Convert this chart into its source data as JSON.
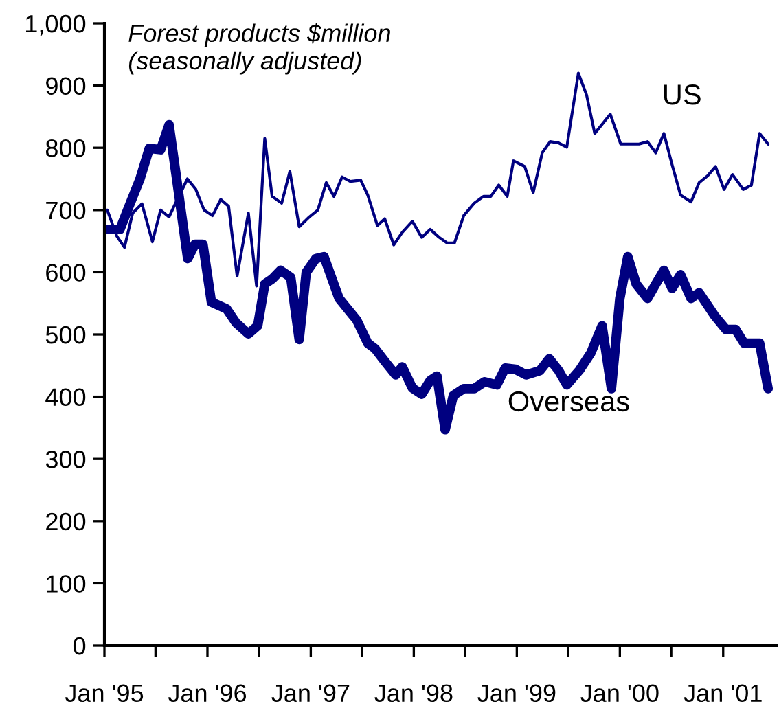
{
  "chart_data": {
    "type": "line",
    "title": "Forest products $million",
    "subtitle": "(seasonally adjusted)",
    "xlim": [
      "1995-01-01",
      "2001-07-08"
    ],
    "xticks": [
      {
        "value": "1995-01",
        "label": "Jan '95"
      },
      {
        "value": "1995-07",
        "label": null
      },
      {
        "value": "1996-01",
        "label": "Jan '96"
      },
      {
        "value": "1996-07",
        "label": null
      },
      {
        "value": "1997-01",
        "label": "Jan '97"
      },
      {
        "value": "1997-07",
        "label": null
      },
      {
        "value": "1998-01",
        "label": "Jan '98"
      },
      {
        "value": "1998-07",
        "label": null
      },
      {
        "value": "1999-01",
        "label": "Jan '99"
      },
      {
        "value": "1999-07",
        "label": null
      },
      {
        "value": "2000-01",
        "label": "Jan '00"
      },
      {
        "value": "2000-07",
        "label": null
      },
      {
        "value": "2001-01",
        "label": "Jan '01"
      }
    ],
    "ylim": [
      0,
      1000
    ],
    "yticks": [
      0,
      100,
      200,
      300,
      400,
      500,
      600,
      700,
      800,
      900,
      {
        "value": 1000,
        "label": "1,000"
      }
    ],
    "grid": false,
    "legend": false,
    "marker": "none",
    "line_style": "solid",
    "series": [
      {
        "name": "US",
        "color": "#000080",
        "x": [
          "1995-01-11",
          "1995-02-14",
          "1995-03-13",
          "1995-04-11",
          "1995-05-14",
          "1995-06-20",
          "1995-07-19",
          "1995-08-18",
          "1995-09-09",
          "1995-10-22",
          "1995-11-21",
          "1995-12-20",
          "1996-01-19",
          "1996-02-17",
          "1996-03-16",
          "1996-04-15",
          "1996-05-25",
          "1996-06-23",
          "1996-07-22",
          "1996-08-17",
          "1996-09-20",
          "1996-10-19",
          "1996-11-21",
          "1996-12-27",
          "1997-01-26",
          "1997-02-25",
          "1997-03-24",
          "1997-04-22",
          "1997-05-21",
          "1997-06-27",
          "1997-07-22",
          "1997-08-25",
          "1997-09-20",
          "1997-10-22",
          "1997-11-21",
          "1997-12-27",
          "1998-01-29",
          "1998-02-28",
          "1998-04-01",
          "1998-04-29",
          "1998-05-25",
          "1998-06-27",
          "1998-08-03",
          "1998-09-05",
          "1998-10-01",
          "1998-10-29",
          "1998-11-28",
          "1998-12-20",
          "1999-01-29",
          "1999-02-28",
          "1999-04-01",
          "1999-04-29",
          "1999-05-28",
          "1999-06-27",
          "1999-08-07",
          "1999-09-05",
          "1999-10-04",
          "1999-11-28",
          "2000-01-04",
          "2000-02-03",
          "2000-03-09",
          "2000-04-08",
          "2000-05-07",
          "2000-06-05",
          "2000-07-04",
          "2000-08-03",
          "2000-09-09",
          "2000-10-08",
          "2000-11-07",
          "2000-12-05",
          "2001-01-04",
          "2001-02-03",
          "2001-03-13",
          "2001-04-11",
          "2001-05-10",
          "2001-06-09"
        ],
        "values": [
          700,
          658,
          640,
          695,
          710,
          649,
          700,
          689,
          710,
          750,
          733,
          700,
          691,
          717,
          706,
          594,
          695,
          578,
          815,
          722,
          711,
          762,
          673,
          689,
          700,
          744,
          722,
          753,
          746,
          748,
          724,
          675,
          686,
          644,
          664,
          682,
          656,
          669,
          656,
          647,
          647,
          691,
          711,
          722,
          722,
          740,
          722,
          779,
          770,
          728,
          792,
          810,
          808,
          801,
          920,
          885,
          823,
          854,
          806,
          806,
          806,
          810,
          792,
          823,
          773,
          724,
          713,
          744,
          755,
          770,
          733,
          757,
          733,
          740,
          823,
          806
        ]
      },
      {
        "name": "Overseas",
        "color": "#000080",
        "x": [
          "1995-01-11",
          "1995-02-25",
          "1995-03-24",
          "1995-05-07",
          "1995-06-09",
          "1995-07-19",
          "1995-08-18",
          "1995-09-09",
          "1995-10-23",
          "1995-11-18",
          "1995-12-16",
          "1996-01-15",
          "1996-03-09",
          "1996-04-11",
          "1996-05-25",
          "1996-06-27",
          "1996-07-22",
          "1996-08-17",
          "1996-09-16",
          "1996-10-22",
          "1996-11-21",
          "1996-12-16",
          "1997-01-19",
          "1997-02-17",
          "1997-04-11",
          "1997-06-13",
          "1997-07-22",
          "1997-08-17",
          "1997-09-20",
          "1997-10-29",
          "1997-11-21",
          "1997-12-27",
          "1998-01-29",
          "1998-02-28",
          "1998-03-24",
          "1998-04-22",
          "1998-05-21",
          "1998-06-27",
          "1998-08-03",
          "1998-09-09",
          "1998-10-22",
          "1998-11-21",
          "1998-12-27",
          "1999-02-03",
          "1999-03-24",
          "1999-04-26",
          "1999-05-29",
          "1999-06-27",
          "1999-08-10",
          "1999-09-20",
          "1999-10-30",
          "1999-12-02",
          "2000-01-01",
          "2000-01-29",
          "2000-02-28",
          "2000-04-08",
          "2000-05-07",
          "2000-06-05",
          "2000-07-04",
          "2000-08-03",
          "2000-09-09",
          "2000-10-08",
          "2000-12-02",
          "2001-01-11",
          "2001-02-14",
          "2001-03-16",
          "2001-04-11",
          "2001-05-10",
          "2001-06-09"
        ],
        "values": [
          669,
          669,
          700,
          750,
          799,
          797,
          837,
          766,
          622,
          645,
          645,
          552,
          541,
          519,
          501,
          514,
          581,
          589,
          603,
          592,
          492,
          600,
          622,
          625,
          558,
          523,
          486,
          477,
          457,
          435,
          448,
          414,
          404,
          426,
          433,
          347,
          402,
          413,
          413,
          424,
          419,
          446,
          444,
          435,
          442,
          461,
          442,
          419,
          442,
          470,
          514,
          413,
          558,
          625,
          581,
          558,
          581,
          603,
          574,
          596,
          558,
          567,
          530,
          508,
          508,
          486,
          486,
          486,
          413
        ]
      }
    ]
  }
}
